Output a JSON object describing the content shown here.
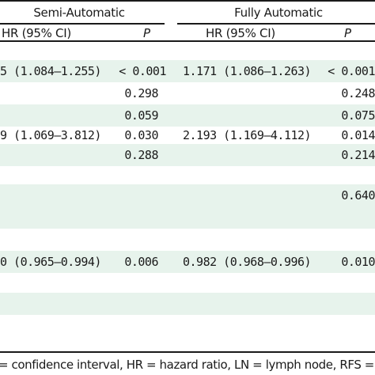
{
  "header": {
    "semi_label": "Semi-Automatic",
    "fully_label": "Fully Automatic",
    "semi_hr_label": "HR (95% CI)",
    "semi_p_label": "P",
    "fully_hr_label": "HR (95% CI)",
    "fully_p_label": "P"
  },
  "rows": [
    {
      "semi_hr": "5 (1.084–1.255)",
      "semi_p": "< 0.001",
      "fully_hr": "1.171 (1.086–1.263)",
      "fully_p": "< 0.001"
    },
    {
      "semi_hr": "",
      "semi_p": "0.298",
      "fully_hr": "",
      "fully_p": "0.248"
    },
    {
      "semi_hr": "",
      "semi_p": "0.059",
      "fully_hr": "",
      "fully_p": "0.075"
    },
    {
      "semi_hr": "9 (1.069–3.812)",
      "semi_p": "0.030",
      "fully_hr": "2.193 (1.169–4.112)",
      "fully_p": "0.014"
    },
    {
      "semi_hr": "",
      "semi_p": "0.288",
      "fully_hr": "",
      "fully_p": "0.214"
    },
    {
      "semi_hr": "",
      "semi_p": "",
      "fully_hr": "",
      "fully_p": ""
    },
    {
      "semi_hr": "",
      "semi_p": "",
      "fully_hr": "",
      "fully_p": ""
    },
    {
      "semi_hr": "",
      "semi_p": "",
      "fully_hr": "",
      "fully_p": "0.640"
    },
    {
      "semi_hr": "",
      "semi_p": "",
      "fully_hr": "",
      "fully_p": ""
    },
    {
      "semi_hr": "0 (0.965–0.994)",
      "semi_p": "0.006",
      "fully_hr": "0.982 (0.968–0.996)",
      "fully_p": "0.010"
    },
    {
      "semi_hr": "",
      "semi_p": "",
      "fully_hr": "",
      "fully_p": ""
    },
    {
      "semi_hr": "",
      "semi_p": "",
      "fully_hr": "",
      "fully_p": ""
    },
    {
      "semi_hr": "",
      "semi_p": "",
      "fully_hr": "",
      "fully_p": ""
    },
    {
      "semi_hr": "",
      "semi_p": "",
      "fully_hr": "",
      "fully_p": ""
    }
  ],
  "footnote": "= confidence interval, HR = hazard ratio, LN = lymph node, RFS ="
}
